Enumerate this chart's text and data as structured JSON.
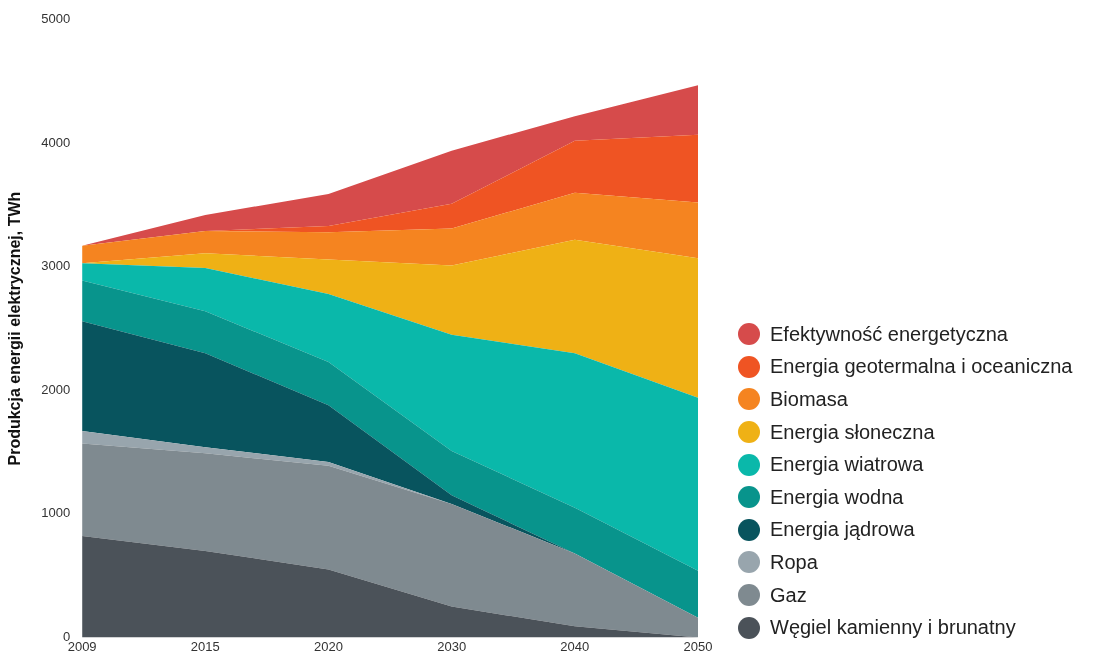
{
  "chart_data": {
    "type": "area",
    "stacked": true,
    "ylabel": "Produkcja energii elektrycznej, TWh",
    "categories": [
      "2009",
      "2015",
      "2020",
      "2030",
      "2040",
      "2050"
    ],
    "ylim": [
      0,
      5000
    ],
    "yticks": [
      0,
      1000,
      2000,
      3000,
      4000,
      5000
    ],
    "grid": false,
    "legend": "right",
    "marker": "none",
    "series": [
      {
        "name": "Węgiel kamienny i brunatny",
        "color": "#4b5259",
        "values": [
          820,
          700,
          550,
          250,
          90,
          0
        ]
      },
      {
        "name": "Gaz",
        "color": "#7f8a90",
        "values": [
          750,
          790,
          840,
          830,
          590,
          160
        ]
      },
      {
        "name": "Ropa",
        "color": "#98a5ad",
        "values": [
          100,
          50,
          30,
          0,
          0,
          0
        ]
      },
      {
        "name": "Energia jądrowa",
        "color": "#08545e",
        "values": [
          890,
          760,
          460,
          70,
          0,
          0
        ]
      },
      {
        "name": "Energia wodna",
        "color": "#08948c",
        "values": [
          330,
          340,
          350,
          360,
          370,
          380
        ]
      },
      {
        "name": "Energia wiatrowa",
        "color": "#0ab8aa",
        "values": [
          140,
          350,
          550,
          940,
          1250,
          1400
        ]
      },
      {
        "name": "Energia słoneczna",
        "color": "#efb115",
        "values": [
          0,
          120,
          280,
          560,
          920,
          1130
        ]
      },
      {
        "name": "Biomasa",
        "color": "#f58420",
        "values": [
          140,
          180,
          220,
          300,
          380,
          450
        ]
      },
      {
        "name": "Energia geotermalna i oceaniczna",
        "color": "#ef5423",
        "values": [
          0,
          0,
          50,
          200,
          420,
          550
        ]
      },
      {
        "name": "Efektywność energetyczna",
        "color": "#d64b4b",
        "values": [
          0,
          130,
          260,
          430,
          200,
          400
        ]
      }
    ]
  }
}
